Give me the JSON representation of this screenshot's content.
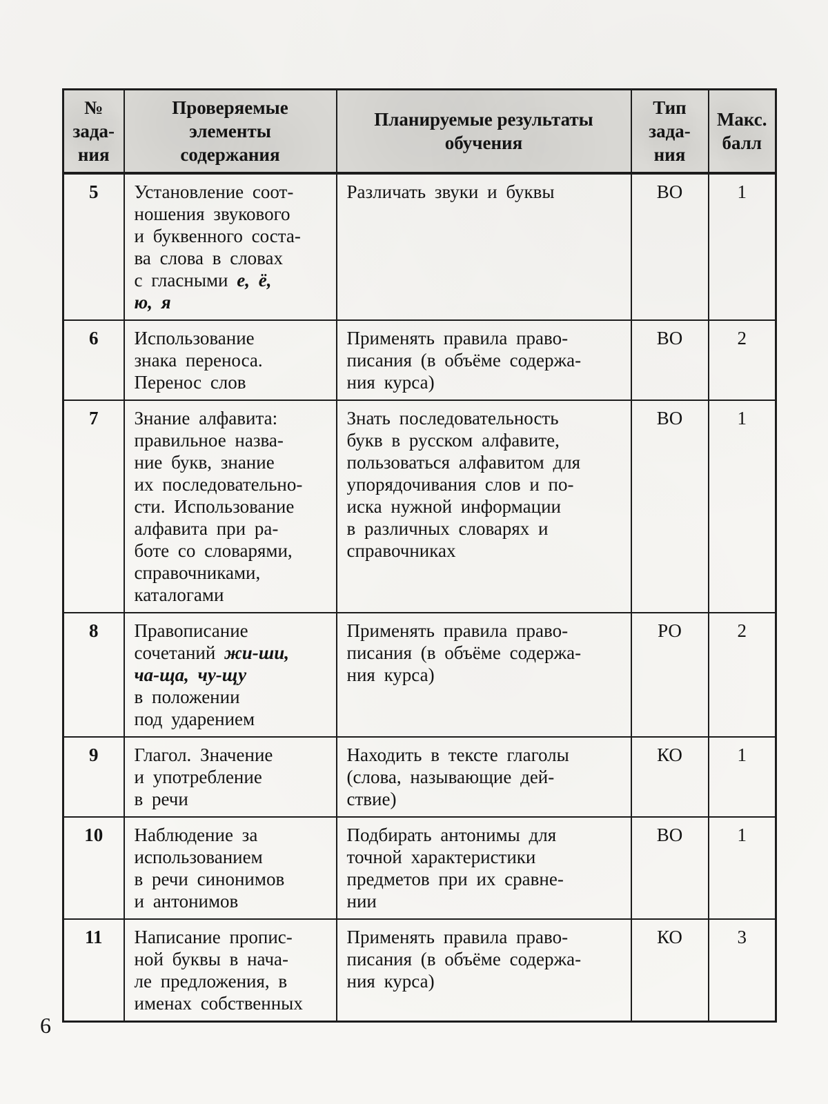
{
  "page": {
    "number": "6"
  },
  "table": {
    "header": {
      "col1": [
        "№",
        "зада-",
        "ния"
      ],
      "col2": [
        "Проверяемые",
        "элементы",
        "содержания"
      ],
      "col3": [
        "Планируемые  результаты",
        "обучения"
      ],
      "col4": [
        "Тип",
        "зада-",
        "ния"
      ],
      "col5": [
        "Макс.",
        "балл"
      ]
    },
    "rows": [
      {
        "num": "5",
        "content": [
          [
            {
              "t": "Установление соот-"
            }
          ],
          [
            {
              "t": "ношения звукового"
            }
          ],
          [
            {
              "t": "и буквенного соста-"
            }
          ],
          [
            {
              "t": "ва слова в словах"
            }
          ],
          [
            {
              "t": "с гласными "
            },
            {
              "t": "е, ё,",
              "i": true
            }
          ],
          [
            {
              "t": "ю, я",
              "i": true
            }
          ]
        ],
        "results": [
          "Различать звуки и буквы"
        ],
        "type": "ВО",
        "score": "1"
      },
      {
        "num": "6",
        "content": [
          [
            {
              "t": "Использование"
            }
          ],
          [
            {
              "t": "знака переноса."
            }
          ],
          [
            {
              "t": "Перенос слов"
            }
          ]
        ],
        "results": [
          "Применять правила право-",
          "писания (в объёме содержа-",
          "ния курса)"
        ],
        "type": "ВО",
        "score": "2"
      },
      {
        "num": "7",
        "content": [
          [
            {
              "t": "Знание алфавита:"
            }
          ],
          [
            {
              "t": "правильное назва-"
            }
          ],
          [
            {
              "t": "ние букв, знание"
            }
          ],
          [
            {
              "t": "их последовательно-"
            }
          ],
          [
            {
              "t": "сти. Использование"
            }
          ],
          [
            {
              "t": "алфавита при ра-"
            }
          ],
          [
            {
              "t": "боте со словарями,"
            }
          ],
          [
            {
              "t": "справочниками,"
            }
          ],
          [
            {
              "t": "каталогами"
            }
          ]
        ],
        "results": [
          "Знать последовательность",
          "букв в русском алфавите,",
          "пользоваться алфавитом для",
          "упорядочивания слов и по-",
          "иска нужной информации",
          "в различных словарях и",
          "справочниках"
        ],
        "type": "ВО",
        "score": "1"
      },
      {
        "num": "8",
        "content": [
          [
            {
              "t": "Правописание"
            }
          ],
          [
            {
              "t": "сочетаний "
            },
            {
              "t": "жи-ши,",
              "i": true
            }
          ],
          [
            {
              "t": "ча-ща, чу-щу",
              "i": true
            }
          ],
          [
            {
              "t": "в положении"
            }
          ],
          [
            {
              "t": "под ударением"
            }
          ]
        ],
        "results": [
          "Применять правила право-",
          "писания (в объёме содержа-",
          "ния курса)"
        ],
        "type": "РО",
        "score": "2"
      },
      {
        "num": "9",
        "content": [
          [
            {
              "t": "Глагол. Значение"
            }
          ],
          [
            {
              "t": "и употребление"
            }
          ],
          [
            {
              "t": "в речи"
            }
          ]
        ],
        "results": [
          "Находить в тексте глаголы",
          "(слова, называющие дей-",
          "ствие)"
        ],
        "type": "КО",
        "score": "1"
      },
      {
        "num": "10",
        "content": [
          [
            {
              "t": "Наблюдение за"
            }
          ],
          [
            {
              "t": "использованием"
            }
          ],
          [
            {
              "t": "в речи синонимов"
            }
          ],
          [
            {
              "t": "и антонимов"
            }
          ]
        ],
        "results": [
          "Подбирать антонимы для",
          "точной характеристики",
          "предметов при их сравне-",
          "нии"
        ],
        "type": "ВО",
        "score": "1"
      },
      {
        "num": "11",
        "content": [
          [
            {
              "t": "Написание пропис-"
            }
          ],
          [
            {
              "t": "ной буквы в нача-"
            }
          ],
          [
            {
              "t": "ле предложения, в"
            }
          ],
          [
            {
              "t": "именах собственных"
            }
          ]
        ],
        "results": [
          "Применять правила право-",
          "писания (в объёме содержа-",
          "ния курса)"
        ],
        "type": "КО",
        "score": "3"
      }
    ]
  }
}
